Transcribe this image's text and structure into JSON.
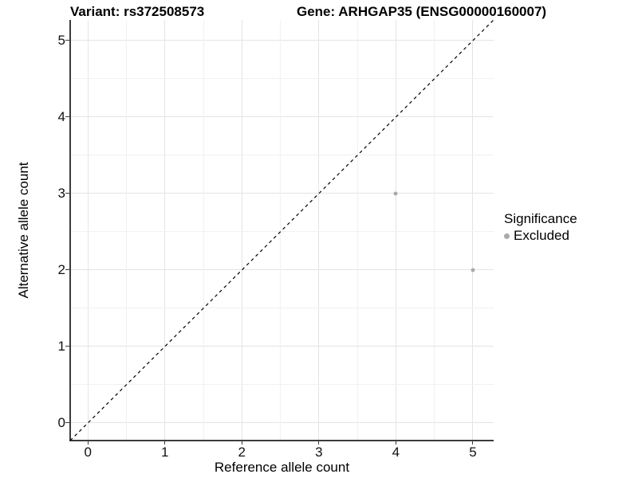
{
  "header": {
    "variant_title": "Variant: rs372508573",
    "gene_title": "Gene: ARHGAP35 (ENSG00000160007)"
  },
  "chart_data": {
    "type": "scatter",
    "title_left": "Variant: rs372508573",
    "title_right": "Gene: ARHGAP35 (ENSG00000160007)",
    "xlabel": "Reference allele count",
    "ylabel": "Alternative allele count",
    "xlim": [
      -0.23,
      5.27
    ],
    "ylim": [
      -0.23,
      5.27
    ],
    "xticks": [
      0,
      1,
      2,
      3,
      4,
      5
    ],
    "yticks": [
      0,
      1,
      2,
      3,
      4,
      5
    ],
    "minor_gridlines": "midpoints between major ticks",
    "grid": true,
    "series": [
      {
        "name": "Excluded",
        "points": [
          {
            "x": 4,
            "y": 3
          },
          {
            "x": 5,
            "y": 2
          }
        ],
        "color": "#aaaaaa"
      }
    ],
    "identity_line": {
      "slope": 1,
      "intercept": 0,
      "style": "dashed",
      "color": "#000000"
    },
    "legend": {
      "title": "Significance",
      "position": "right",
      "items": [
        {
          "label": "Excluded",
          "color": "#aaaaaa"
        }
      ]
    },
    "colors": {
      "grid_major": "#e4e4e4",
      "grid_minor": "#f1f1f1",
      "axis_line": "#3c3c3c",
      "background": "#ffffff"
    }
  }
}
